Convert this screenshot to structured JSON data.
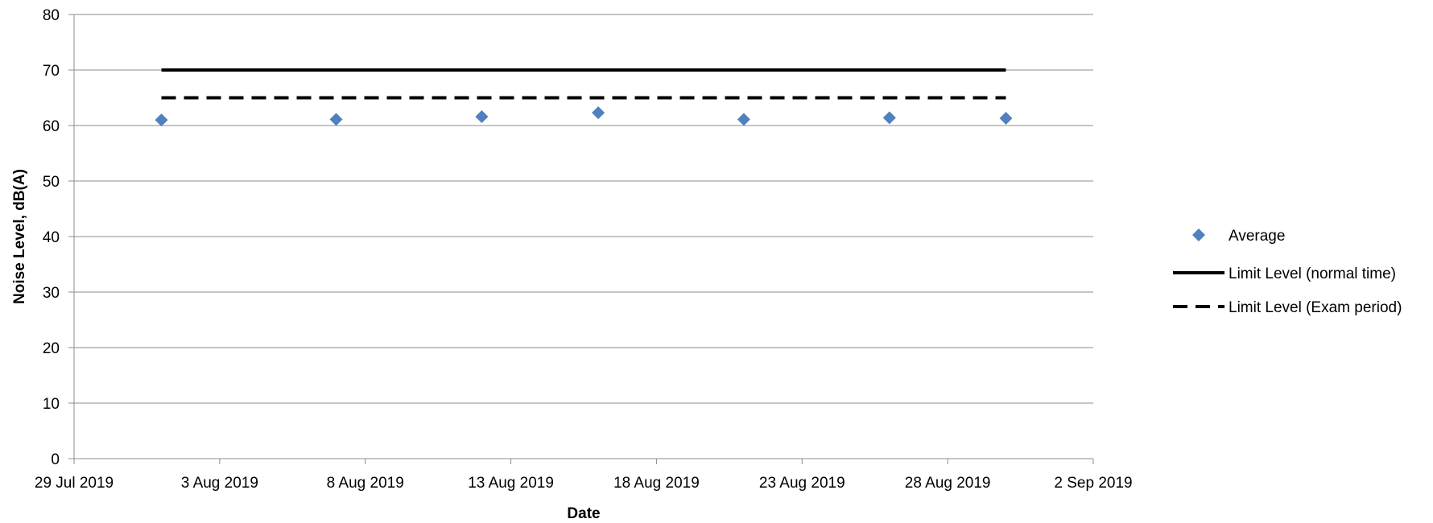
{
  "chart_data": {
    "type": "scatter",
    "xlabel": "Date",
    "ylabel": "Noise Level, dB(A)",
    "ylim": [
      0,
      80
    ],
    "yticks": [
      0,
      10,
      20,
      30,
      40,
      50,
      60,
      70,
      80
    ],
    "xlim": [
      "2019-07-29",
      "2019-09-02"
    ],
    "xticks": [
      "2019-07-29",
      "2019-08-03",
      "2019-08-08",
      "2019-08-13",
      "2019-08-18",
      "2019-08-23",
      "2019-08-28",
      "2019-09-02"
    ],
    "xtick_labels": [
      "29 Jul 2019",
      "3 Aug 2019",
      "8 Aug 2019",
      "13 Aug 2019",
      "18 Aug 2019",
      "23 Aug 2019",
      "28 Aug 2019",
      "2 Sep 2019"
    ],
    "grid": "horizontal",
    "legend_position": "right",
    "series": [
      {
        "name": "Average",
        "kind": "scatter",
        "marker": "diamond",
        "color": "#4F81BD",
        "x": [
          "2019-08-01",
          "2019-08-07",
          "2019-08-12",
          "2019-08-16",
          "2019-08-21",
          "2019-08-26",
          "2019-08-30"
        ],
        "y": [
          61.0,
          61.1,
          61.6,
          62.3,
          61.1,
          61.4,
          61.3
        ]
      },
      {
        "name": "Limit Level (normal time)",
        "kind": "line",
        "style": "solid",
        "color": "#000000",
        "x": [
          "2019-08-01",
          "2019-08-30"
        ],
        "y": [
          70,
          70
        ]
      },
      {
        "name": "Limit Level (Exam period)",
        "kind": "line",
        "style": "dashed",
        "color": "#000000",
        "x": [
          "2019-08-01",
          "2019-08-30"
        ],
        "y": [
          65,
          65
        ]
      }
    ]
  }
}
